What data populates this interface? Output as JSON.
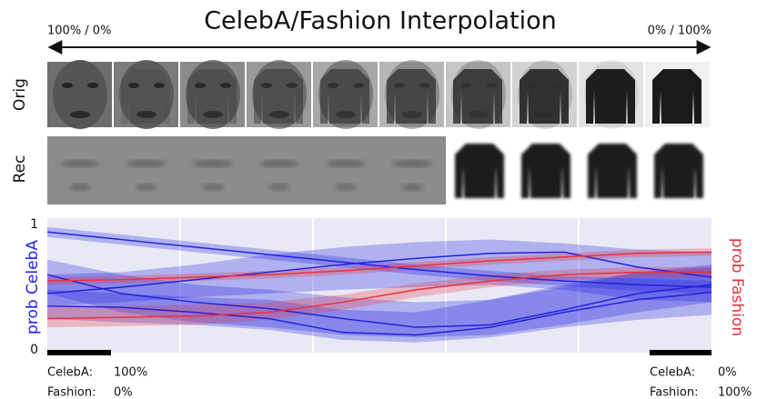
{
  "title": "CelebA/Fashion Interpolation",
  "arrow_labels": {
    "left": "100% / 0%",
    "right": "0% / 100%"
  },
  "row_labels": [
    "Orig",
    "Rec"
  ],
  "mix_left": [
    {
      "label": "CelebA:",
      "value": "100%"
    },
    {
      "label": "Fashion:",
      "value": "0%"
    }
  ],
  "mix_right": [
    {
      "label": "CelebA:",
      "value": "0%"
    },
    {
      "label": "Fashion:",
      "value": "100%"
    }
  ],
  "chart_data": {
    "type": "line",
    "ylabel": "prob CelebA",
    "y2label": "prob Fashion",
    "ylabel_color": "#2222ee",
    "y2label_color": "#e8323c",
    "categories": [
      null,
      null,
      null,
      null,
      null,
      null,
      null,
      null,
      null,
      null
    ],
    "ylim": [
      0,
      1
    ],
    "yticks": [
      0,
      1
    ],
    "grid": true,
    "series": [
      {
        "color": "#2222dd",
        "values": [
          0.94,
          0.88,
          0.82,
          0.76,
          0.7,
          0.64,
          0.59,
          0.55,
          0.52,
          0.5
        ],
        "lower": [
          0.9,
          0.84,
          0.78,
          0.72,
          0.66,
          0.6,
          0.55,
          0.51,
          0.47,
          0.45
        ],
        "upper": [
          0.98,
          0.92,
          0.86,
          0.8,
          0.74,
          0.68,
          0.63,
          0.59,
          0.57,
          0.55
        ]
      },
      {
        "color": "#2222dd",
        "values": [
          0.45,
          0.5,
          0.56,
          0.62,
          0.68,
          0.73,
          0.77,
          0.78,
          0.66,
          0.58
        ],
        "lower": [
          0.35,
          0.38,
          0.42,
          0.45,
          0.48,
          0.5,
          0.52,
          0.48,
          0.4,
          0.38
        ],
        "upper": [
          0.6,
          0.62,
          0.68,
          0.76,
          0.82,
          0.86,
          0.88,
          0.85,
          0.8,
          0.78
        ]
      },
      {
        "color": "#2222dd",
        "values": [
          0.6,
          0.45,
          0.38,
          0.33,
          0.25,
          0.18,
          0.2,
          0.32,
          0.45,
          0.52
        ],
        "lower": [
          0.45,
          0.3,
          0.22,
          0.18,
          0.12,
          0.1,
          0.12,
          0.2,
          0.3,
          0.38
        ],
        "upper": [
          0.72,
          0.6,
          0.52,
          0.48,
          0.42,
          0.38,
          0.4,
          0.5,
          0.62,
          0.68
        ]
      },
      {
        "color": "#2222dd",
        "values": [
          0.35,
          0.34,
          0.3,
          0.25,
          0.14,
          0.12,
          0.18,
          0.3,
          0.4,
          0.46
        ],
        "lower": [
          0.25,
          0.22,
          0.2,
          0.16,
          0.08,
          0.06,
          0.1,
          0.18,
          0.24,
          0.28
        ],
        "upper": [
          0.48,
          0.45,
          0.42,
          0.4,
          0.32,
          0.3,
          0.4,
          0.52,
          0.62,
          0.66
        ]
      },
      {
        "color": "#e8323c",
        "values": [
          0.55,
          0.56,
          0.58,
          0.6,
          0.63,
          0.67,
          0.71,
          0.74,
          0.77,
          0.78
        ],
        "lower": [
          0.52,
          0.53,
          0.55,
          0.57,
          0.6,
          0.64,
          0.68,
          0.71,
          0.74,
          0.75
        ],
        "upper": [
          0.58,
          0.59,
          0.61,
          0.63,
          0.66,
          0.7,
          0.74,
          0.77,
          0.8,
          0.81
        ]
      },
      {
        "color": "#e8323c",
        "values": [
          0.25,
          0.26,
          0.27,
          0.3,
          0.38,
          0.48,
          0.55,
          0.6,
          0.62,
          0.62
        ],
        "lower": [
          0.18,
          0.19,
          0.2,
          0.24,
          0.32,
          0.42,
          0.5,
          0.56,
          0.58,
          0.58
        ],
        "upper": [
          0.34,
          0.35,
          0.36,
          0.38,
          0.44,
          0.53,
          0.6,
          0.64,
          0.66,
          0.66
        ]
      }
    ]
  }
}
